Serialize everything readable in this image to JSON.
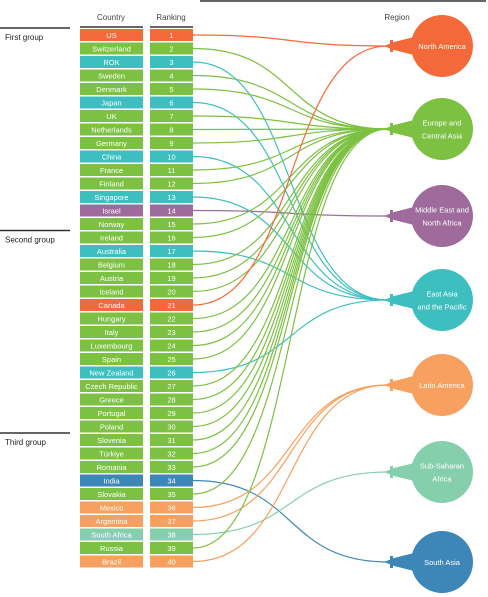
{
  "headers": {
    "country": "Country",
    "ranking": "Ranking",
    "region": "Region"
  },
  "groups": [
    {
      "label": "First group",
      "start_rank": 1
    },
    {
      "label": "Second group",
      "start_rank": 16
    },
    {
      "label": "Third group",
      "start_rank": 31
    }
  ],
  "regions": [
    {
      "id": "na",
      "lines": [
        "North America"
      ],
      "color": "#f4693a"
    },
    {
      "id": "eca",
      "lines": [
        "Europe and",
        "Central Asia"
      ],
      "color": "#7cc142"
    },
    {
      "id": "mena",
      "lines": [
        "Middle East and",
        "North Africa"
      ],
      "color": "#9f6b9c"
    },
    {
      "id": "eap",
      "lines": [
        "East Asia",
        "and the Pacific"
      ],
      "color": "#3dbfc0"
    },
    {
      "id": "la",
      "lines": [
        "Latin America"
      ],
      "color": "#f8a05f"
    },
    {
      "id": "ssa",
      "lines": [
        "Sub-Saharan",
        "Africa"
      ],
      "color": "#86cfad"
    },
    {
      "id": "sa",
      "lines": [
        "South Asia"
      ],
      "color": "#3d86b8"
    }
  ],
  "countries": [
    {
      "name": "US",
      "rank": "1",
      "region": "na"
    },
    {
      "name": "Switzerland",
      "rank": "2",
      "region": "eca"
    },
    {
      "name": "ROK",
      "rank": "3",
      "region": "eap"
    },
    {
      "name": "Sweden",
      "rank": "4",
      "region": "eca"
    },
    {
      "name": "Denmark",
      "rank": "5",
      "region": "eca"
    },
    {
      "name": "Japan",
      "rank": "6",
      "region": "eap"
    },
    {
      "name": "UK",
      "rank": "7",
      "region": "eca"
    },
    {
      "name": "Netherlands",
      "rank": "8",
      "region": "eca"
    },
    {
      "name": "Germany",
      "rank": "9",
      "region": "eca"
    },
    {
      "name": "China",
      "rank": "10",
      "region": "eap"
    },
    {
      "name": "France",
      "rank": "11",
      "region": "eca"
    },
    {
      "name": "Finland",
      "rank": "12",
      "region": "eca"
    },
    {
      "name": "Singapore",
      "rank": "13",
      "region": "eap"
    },
    {
      "name": "Israel",
      "rank": "14",
      "region": "mena"
    },
    {
      "name": "Norway",
      "rank": "15",
      "region": "eca"
    },
    {
      "name": "Ireland",
      "rank": "16",
      "region": "eca"
    },
    {
      "name": "Australia",
      "rank": "17",
      "region": "eap"
    },
    {
      "name": "Belgium",
      "rank": "18",
      "region": "eca"
    },
    {
      "name": "Austria",
      "rank": "19",
      "region": "eca"
    },
    {
      "name": "Iceland",
      "rank": "20",
      "region": "eca"
    },
    {
      "name": "Canada",
      "rank": "21",
      "region": "na"
    },
    {
      "name": "Hungary",
      "rank": "22",
      "region": "eca"
    },
    {
      "name": "Italy",
      "rank": "23",
      "region": "eca"
    },
    {
      "name": "Luxembourg",
      "rank": "24",
      "region": "eca"
    },
    {
      "name": "Spain",
      "rank": "25",
      "region": "eca"
    },
    {
      "name": "New Zealand",
      "rank": "26",
      "region": "eap"
    },
    {
      "name": "Czech Republic",
      "rank": "27",
      "region": "eca"
    },
    {
      "name": "Greece",
      "rank": "28",
      "region": "eca"
    },
    {
      "name": "Portugal",
      "rank": "29",
      "region": "eca"
    },
    {
      "name": "Poland",
      "rank": "30",
      "region": "eca"
    },
    {
      "name": "Slovenia",
      "rank": "31",
      "region": "eca"
    },
    {
      "name": "Türkiye",
      "rank": "32",
      "region": "eca"
    },
    {
      "name": "Romania",
      "rank": "33",
      "region": "eca"
    },
    {
      "name": "India",
      "rank": "34",
      "region": "sa"
    },
    {
      "name": "Slovakia",
      "rank": "35",
      "region": "eca"
    },
    {
      "name": "Mexico",
      "rank": "36",
      "region": "la"
    },
    {
      "name": "Argentina",
      "rank": "37",
      "region": "la"
    },
    {
      "name": "South Africa",
      "rank": "38",
      "region": "ssa"
    },
    {
      "name": "Russia",
      "rank": "39",
      "region": "eca"
    },
    {
      "name": "Brazil",
      "rank": "40",
      "region": "la"
    }
  ]
}
